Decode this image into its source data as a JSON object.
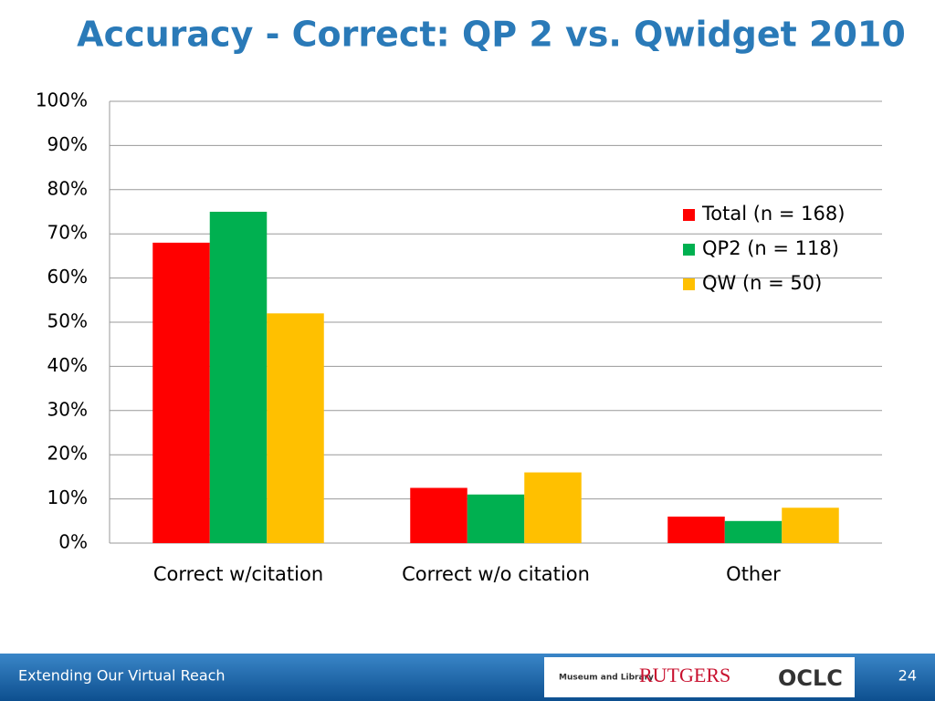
{
  "chart_data": {
    "type": "bar",
    "title": "Accuracy - Correct: QP 2 vs. Qwidget 2010",
    "categories": [
      "Correct w/citation",
      "Correct w/o citation",
      "Other"
    ],
    "series": [
      {
        "name": "Total (n = 168)",
        "color": "#ff0000",
        "values": [
          68,
          12.5,
          6
        ]
      },
      {
        "name": "QP2 (n = 118)",
        "color": "#00b050",
        "values": [
          75,
          11,
          5
        ]
      },
      {
        "name": "QW (n = 50)",
        "color": "#ffc000",
        "values": [
          52,
          16,
          8
        ]
      }
    ],
    "ylim": [
      0,
      100
    ],
    "yticks": [
      {
        "value": 0,
        "label": "0%"
      },
      {
        "value": 10,
        "label": "10%"
      },
      {
        "value": 20,
        "label": "20%"
      },
      {
        "value": 30,
        "label": "30%"
      },
      {
        "value": 40,
        "label": "40%"
      },
      {
        "value": 50,
        "label": "50%"
      },
      {
        "value": 60,
        "label": "60%"
      },
      {
        "value": 70,
        "label": "70%"
      },
      {
        "value": 80,
        "label": "80%"
      },
      {
        "value": 90,
        "label": "90%"
      },
      {
        "value": 100,
        "label": "100%"
      }
    ],
    "grid": true,
    "legend": "upper right"
  },
  "footer": {
    "text": "Extending Our Virtual Reach",
    "page": "24",
    "logos": [
      "Museum and Library",
      "RUTGERS",
      "OCLC"
    ]
  }
}
